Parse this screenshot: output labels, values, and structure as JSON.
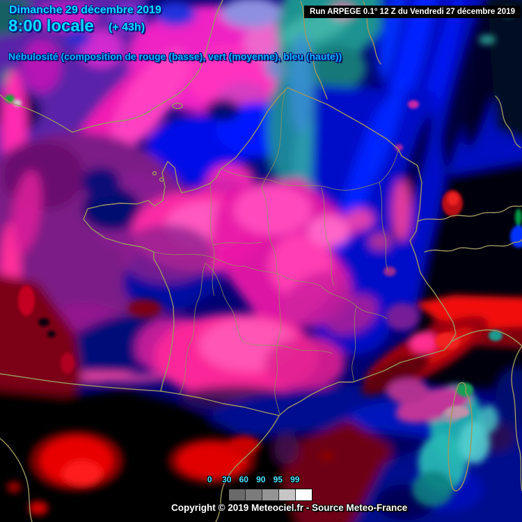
{
  "header": {
    "date": "Dimanche 29 décembre 2019",
    "time": "8:00 locale",
    "forecast_offset": "(+ 43h)",
    "subtitle": "Nébulosité (composition de rouge (basse), vert (moyenne), bleu (haute))"
  },
  "run_info": {
    "label": "Run ARPEGE 0.1° 12 Z du Vendredi 27 décembre 2019"
  },
  "scale": {
    "labels": [
      "0",
      "30",
      "60",
      "90",
      "95",
      "99"
    ],
    "box_colors": [
      "#6a6a6a",
      "#7b7b7b",
      "#949494",
      "#c6c6c6",
      "#ffffff"
    ]
  },
  "footer": {
    "copyright": "Copyright © 2019 Meteociel.fr - Source Meteo-France"
  },
  "colors": {
    "header_text": "#00dcff",
    "subtitle_text": "#00b2ff",
    "run_bar_bg": "#000000",
    "run_bar_text": "#ffffff",
    "scale_label_text": "#4fe3ff",
    "border_line": "#9c9660",
    "low_cloud": "#ff0000",
    "mid_cloud": "#00a000",
    "high_cloud": "#0000ff"
  }
}
